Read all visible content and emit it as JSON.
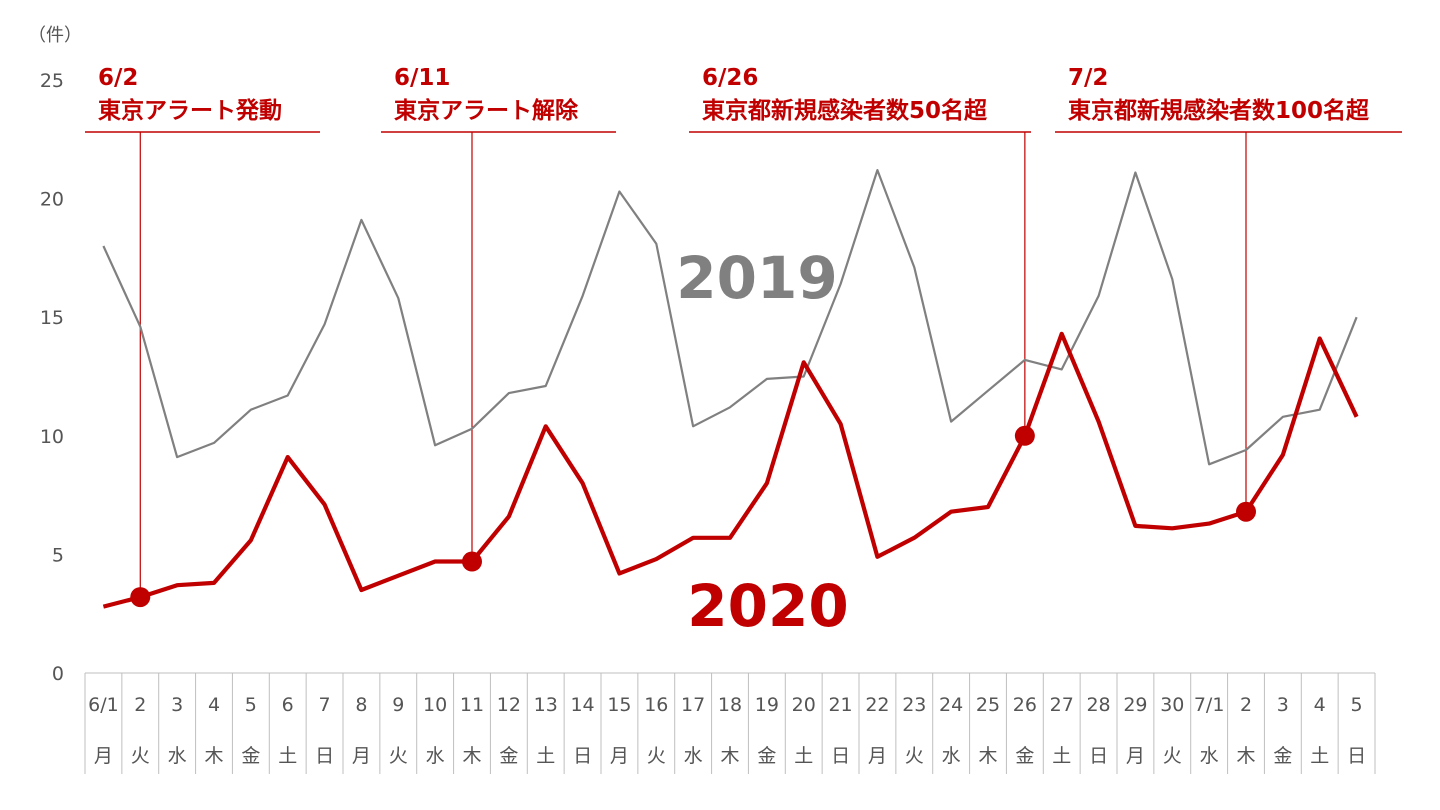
{
  "chart_data": {
    "type": "line",
    "unit_label": "（件）",
    "ylim": [
      0,
      25
    ],
    "yticks": [
      0,
      5,
      10,
      15,
      20,
      25
    ],
    "grid": false,
    "categories": [
      "6/1",
      "2",
      "3",
      "4",
      "5",
      "6",
      "7",
      "8",
      "9",
      "10",
      "11",
      "12",
      "13",
      "14",
      "15",
      "16",
      "17",
      "18",
      "19",
      "20",
      "21",
      "22",
      "23",
      "24",
      "25",
      "26",
      "27",
      "28",
      "29",
      "30",
      "7/1",
      "2",
      "3",
      "4",
      "5"
    ],
    "weekdays": [
      "月",
      "火",
      "水",
      "木",
      "金",
      "土",
      "日",
      "月",
      "火",
      "水",
      "木",
      "金",
      "土",
      "日",
      "月",
      "火",
      "水",
      "木",
      "金",
      "土",
      "日",
      "月",
      "火",
      "水",
      "木",
      "金",
      "土",
      "日",
      "月",
      "火",
      "水",
      "木",
      "金",
      "土",
      "日"
    ],
    "series": [
      {
        "name": "2019",
        "color": "#808080",
        "values": [
          18.0,
          14.6,
          9.1,
          9.7,
          11.1,
          11.7,
          14.7,
          19.1,
          15.8,
          9.6,
          10.3,
          11.8,
          12.1,
          15.9,
          20.3,
          18.1,
          10.4,
          11.2,
          12.4,
          12.5,
          16.4,
          21.2,
          17.1,
          10.6,
          11.9,
          13.2,
          12.8,
          15.9,
          21.1,
          16.6,
          8.8,
          9.4,
          10.8,
          11.1,
          15.0
        ]
      },
      {
        "name": "2020",
        "color": "#c00000",
        "values": [
          2.8,
          3.2,
          3.7,
          3.8,
          5.6,
          9.1,
          7.1,
          3.5,
          4.1,
          4.7,
          4.7,
          6.6,
          10.4,
          8.0,
          4.2,
          4.8,
          5.7,
          5.7,
          8.0,
          13.1,
          10.5,
          4.9,
          5.7,
          6.8,
          7.0,
          10.0,
          14.3,
          10.6,
          6.2,
          6.1,
          6.3,
          6.8,
          9.2,
          14.1,
          10.8
        ]
      }
    ],
    "annotations": [
      {
        "date": "6/2",
        "text": "東京アラート発動",
        "index": 1
      },
      {
        "date": "6/11",
        "text": "東京アラート解除",
        "index": 10
      },
      {
        "date": "6/26",
        "text": "東京都新規感染者数50名超",
        "index": 25
      },
      {
        "date": "7/2",
        "text": "東京都新規感染者数100名超",
        "index": 31
      }
    ]
  }
}
